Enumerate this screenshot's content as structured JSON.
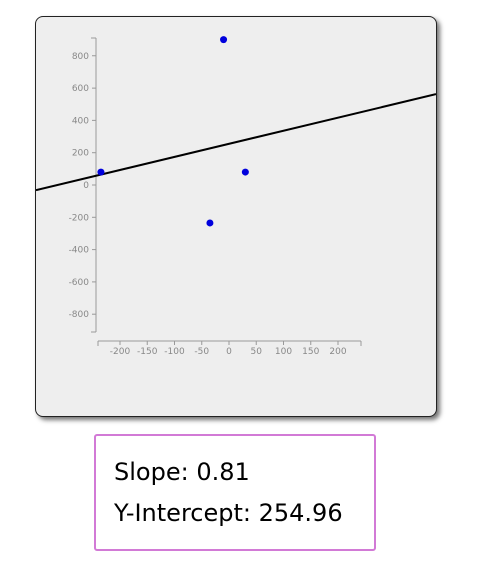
{
  "chart_data": {
    "type": "scatter",
    "x_ticks": [
      -200,
      -150,
      -100,
      -50,
      0,
      50,
      100,
      150,
      200
    ],
    "y_ticks": [
      800,
      600,
      400,
      200,
      0,
      -200,
      -400,
      -600,
      -800
    ],
    "xlim": [
      -240,
      240
    ],
    "ylim": [
      -900,
      900
    ],
    "points": [
      {
        "x": -235,
        "y": 80
      },
      {
        "x": -10,
        "y": 900
      },
      {
        "x": 30,
        "y": 80
      },
      {
        "x": -35,
        "y": -235
      }
    ],
    "regression": {
      "slope": 0.81,
      "intercept": 254.96
    },
    "point_color": "#0000dd",
    "line_color": "#000000"
  },
  "stats": {
    "slope_label": "Slope:",
    "slope_value": "0.81",
    "intercept_label": "Y-Intercept:",
    "intercept_value": "254.96"
  },
  "colors": {
    "panel_bg": "#eeeeee",
    "stats_border": "#d27ad6"
  }
}
